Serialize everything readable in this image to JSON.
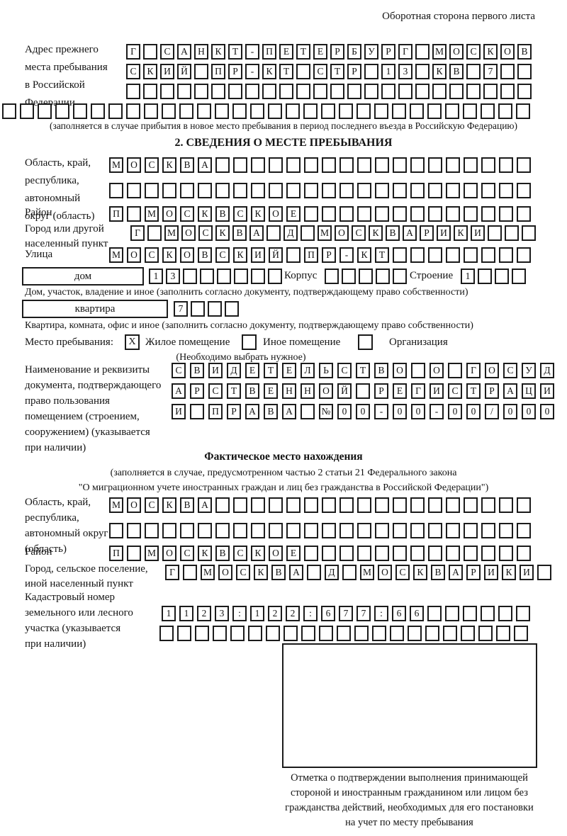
{
  "page": {
    "title": "Оборотная сторона первого листа"
  },
  "prev_address": {
    "label": "Адрес прежнего\nместа пребывания\nв Российской\nФедерации",
    "rows": [
      {
        "text": "Г САНКТ-ПЕТЕРБУРГ МОСКОВ",
        "length": 24
      },
      {
        "text": "СКИЙ ПР-КТ СТР 13 КВ 7",
        "length": 24
      },
      {
        "text": "",
        "length": 24
      },
      {
        "text": "",
        "length": 30
      }
    ],
    "note": "(заполняется в случае прибытия в новое место пребывания в период последнего въезда в Российскую Федерацию)"
  },
  "section2": {
    "heading": "2. СВЕДЕНИЯ О МЕСТЕ ПРЕБЫВАНИЯ",
    "region": {
      "label": "Область, край,\nреспублика,\nавтономный\nокруг (область)",
      "rows": [
        {
          "text": "МОСКВА",
          "length": 24
        },
        {
          "text": "",
          "length": 24
        }
      ]
    },
    "district": {
      "label": "Район",
      "row": {
        "text": "П МОСКВСКОЕ",
        "length": 24
      }
    },
    "city": {
      "label": "Город или другой\nнаселенный пункт",
      "row": {
        "text": "Г МОСКВА Д МОСКВАРИКИ",
        "length": 24
      }
    },
    "street": {
      "label": "Улица",
      "row": {
        "text": "МОСКОВСКИЙ ПР-КТ",
        "length": 24
      }
    },
    "house": {
      "box_label": "дом",
      "number": {
        "text": "13",
        "length": 8
      },
      "korpus_label": "Корпус",
      "korpus": {
        "text": "",
        "length": 5
      },
      "stroenie_label": "Строение",
      "stroenie": {
        "text": "1",
        "length": 4
      }
    },
    "house_note": "Дом, участок, владение и иное (заполнить согласно документу, подтверждающему право собственности)",
    "apartment": {
      "box_label": "квартира",
      "number": {
        "text": "7",
        "length": 4
      }
    },
    "apartment_note": "Квартира, комната, офис и иное (заполнить согласно документу, подтверждающему право собственности)",
    "stay_type": {
      "label": "Место пребывания:",
      "options": [
        {
          "label": "Жилое помещение",
          "mark": "X"
        },
        {
          "label": "Иное помещение",
          "mark": ""
        },
        {
          "label": "Организация",
          "mark": ""
        }
      ],
      "note": "(Необходимо выбрать нужное)"
    },
    "document": {
      "label": "Наименование и реквизиты\nдокумента, подтверждающего\nправо пользования\nпомещением (строением,\nсооружением) (указывается\nпри наличии)",
      "rows": [
        {
          "text": "СВИДЕТЕЛЬСТВО О ГОСУД",
          "length": 21
        },
        {
          "text": "АРСТВЕННОЙ РЕГИСТРАЦИ",
          "length": 21
        },
        {
          "text": "И ПРАВА №00-00-00/000",
          "length": 21
        }
      ]
    }
  },
  "actual_location": {
    "heading": "Фактическое место нахождения",
    "notes": [
      "(заполняется в случае, предусмотренном частью 2 статьи 21 Федерального закона",
      "\"О миграционном учете иностранных граждан и лиц без гражданства в Российской Федерации\")"
    ],
    "region": {
      "label": "Область, край,\nреспублика,\nавтономный округ\n(область)",
      "rows": [
        {
          "text": "МОСКВА",
          "length": 24
        },
        {
          "text": "",
          "length": 24
        }
      ]
    },
    "district": {
      "label": "Район",
      "row": {
        "text": "П МОСКВСКОЕ",
        "length": 24
      }
    },
    "city": {
      "label": "Город, сельское поселение,\nиной населенный пункт",
      "row": {
        "text": "Г МОСКВА Д МОСКВАРИКИ",
        "length": 22
      }
    },
    "cadastre": {
      "label": "Кадастровый номер\nземельного или лесного\nучастка (указывается\nпри наличии)",
      "rows": [
        {
          "text": "1123:122:677:66",
          "length": 21
        },
        {
          "text": "",
          "length": 21
        }
      ]
    }
  },
  "confirmation": {
    "caption": "Отметка о подтверждении выполнения принимающей\nстороной и иностранным гражданином или лицом без\nгражданства действий, необходимых для его постановки\nна учет по месту пребывания"
  }
}
